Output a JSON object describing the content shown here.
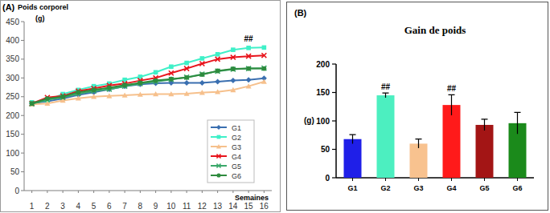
{
  "chart_data": [
    {
      "type": "line",
      "panel_label": "(A)",
      "ylabel": "Poids corporel",
      "ylabel_unit": "(g)",
      "xlabel": "Semaines",
      "x": [
        1,
        2,
        3,
        4,
        5,
        6,
        7,
        8,
        9,
        10,
        11,
        12,
        13,
        14,
        15,
        16
      ],
      "xlim": [
        0.5,
        16.5
      ],
      "xticks": [
        1,
        2,
        3,
        4,
        5,
        6,
        7,
        8,
        9,
        10,
        11,
        12,
        13,
        14,
        15,
        16
      ],
      "ylim": [
        0,
        450
      ],
      "yticks": [
        0,
        50,
        100,
        150,
        200,
        250,
        300,
        350,
        400,
        450
      ],
      "grid": false,
      "legend": "lower right",
      "series": [
        {
          "name": "G1",
          "color": "#3a6fb0",
          "marker": "diamond",
          "values": [
            232,
            238,
            245,
            255,
            262,
            270,
            278,
            283,
            286,
            287,
            287,
            287,
            290,
            293,
            295,
            299
          ]
        },
        {
          "name": "G2",
          "color": "#3ff0c8",
          "marker": "square",
          "values": [
            235,
            240,
            257,
            268,
            278,
            285,
            295,
            303,
            315,
            330,
            340,
            352,
            363,
            375,
            380,
            381
          ]
        },
        {
          "name": "G3",
          "color": "#f6c08c",
          "marker": "triangle",
          "values": [
            230,
            232,
            240,
            246,
            250,
            252,
            254,
            256,
            257,
            257,
            258,
            261,
            263,
            268,
            278,
            290
          ]
        },
        {
          "name": "G4",
          "color": "#e8141c",
          "marker": "x",
          "values": [
            232,
            248,
            252,
            265,
            272,
            280,
            285,
            293,
            300,
            313,
            325,
            338,
            350,
            355,
            358,
            360
          ]
        },
        {
          "name": "G5",
          "color": "#3aa86a",
          "marker": "x",
          "values": [
            231,
            242,
            248,
            258,
            265,
            270,
            278,
            285,
            290,
            296,
            302,
            310,
            318,
            323,
            325,
            326
          ]
        },
        {
          "name": "G6",
          "color": "#2e8b3e",
          "marker": "circle",
          "values": [
            232,
            245,
            250,
            262,
            268,
            274,
            281,
            287,
            293,
            297,
            301,
            309,
            319,
            324,
            325,
            325
          ]
        }
      ],
      "annotations": [
        {
          "text": "##",
          "series": "G2",
          "x": 15
        }
      ]
    },
    {
      "type": "bar",
      "panel_label": "(B)",
      "title": "Gain de poids",
      "ylabel": "(g)",
      "categories": [
        "G1",
        "G2",
        "G3",
        "G4",
        "G5",
        "G6"
      ],
      "values": [
        68,
        145,
        60,
        128,
        93,
        96
      ],
      "errors": [
        8,
        4,
        8,
        18,
        10,
        19
      ],
      "colors": [
        "#1f1fe8",
        "#4cefc0",
        "#f8c28f",
        "#ff1a1a",
        "#a31515",
        "#1b8a1b"
      ],
      "ylim": [
        0,
        200
      ],
      "yticks": [
        0,
        50,
        100,
        150,
        200
      ],
      "grid": false,
      "annotations": [
        {
          "text": "##",
          "category": "G2"
        },
        {
          "text": "##",
          "category": "G4"
        }
      ]
    }
  ]
}
